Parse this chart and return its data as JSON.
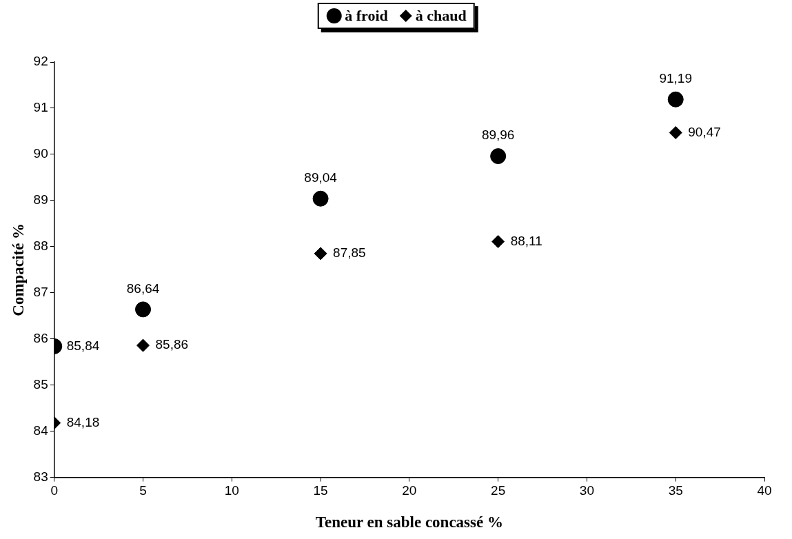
{
  "chart_data": {
    "type": "scatter",
    "xlabel": "Teneur en sable concassé %",
    "ylabel": "Compacité %",
    "x": [
      0,
      5,
      15,
      25,
      35
    ],
    "series": [
      {
        "name": "à froid",
        "color": "#000000",
        "marker": "circle",
        "values": [
          85.84,
          86.64,
          89.04,
          89.96,
          91.19
        ],
        "value_labels": [
          "85,84",
          "86,64",
          "89,04",
          "89,96",
          "91,19"
        ]
      },
      {
        "name": "à chaud",
        "color": "#000000",
        "marker": "diamond",
        "values": [
          84.18,
          85.86,
          87.85,
          88.11,
          90.47
        ],
        "value_labels": [
          "84,18",
          "85,86",
          "87,85",
          "88,11",
          "90,47"
        ]
      }
    ],
    "xlim": [
      0,
      40
    ],
    "xticks": [
      0,
      5,
      10,
      15,
      20,
      25,
      30,
      35,
      40
    ],
    "ylim": [
      83,
      92
    ],
    "yticks": [
      83,
      84,
      85,
      86,
      87,
      88,
      89,
      90,
      91,
      92
    ],
    "grid": false,
    "legend": "top"
  }
}
